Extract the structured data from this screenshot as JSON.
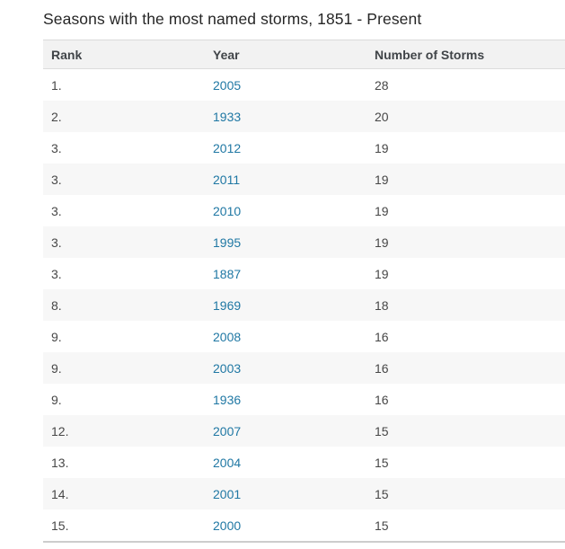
{
  "title": "Seasons with the most named storms, 1851 - Present",
  "table": {
    "headers": [
      "Rank",
      "Year",
      "Number of Storms"
    ],
    "rows": [
      {
        "rank": "1.",
        "year": "2005",
        "storms": "28"
      },
      {
        "rank": "2.",
        "year": "1933",
        "storms": "20"
      },
      {
        "rank": "3.",
        "year": "2012",
        "storms": "19"
      },
      {
        "rank": "3.",
        "year": "2011",
        "storms": "19"
      },
      {
        "rank": "3.",
        "year": "2010",
        "storms": "19"
      },
      {
        "rank": "3.",
        "year": "1995",
        "storms": "19"
      },
      {
        "rank": "3.",
        "year": "1887",
        "storms": "19"
      },
      {
        "rank": "8.",
        "year": "1969",
        "storms": "18"
      },
      {
        "rank": "9.",
        "year": "2008",
        "storms": "16"
      },
      {
        "rank": "9.",
        "year": "2003",
        "storms": "16"
      },
      {
        "rank": "9.",
        "year": "1936",
        "storms": "16"
      },
      {
        "rank": "12.",
        "year": "2007",
        "storms": "15"
      },
      {
        "rank": "13.",
        "year": "2004",
        "storms": "15"
      },
      {
        "rank": "14.",
        "year": "2001",
        "storms": "15"
      },
      {
        "rank": "15.",
        "year": "2000",
        "storms": "15"
      }
    ]
  },
  "chart_data": {
    "type": "table",
    "title": "Seasons with the most named storms, 1851 - Present",
    "columns": [
      "Rank",
      "Year",
      "Number of Storms"
    ],
    "rows": [
      [
        "1.",
        "2005",
        28
      ],
      [
        "2.",
        "1933",
        20
      ],
      [
        "3.",
        "2012",
        19
      ],
      [
        "3.",
        "2011",
        19
      ],
      [
        "3.",
        "2010",
        19
      ],
      [
        "3.",
        "1995",
        19
      ],
      [
        "3.",
        "1887",
        19
      ],
      [
        "8.",
        "1969",
        18
      ],
      [
        "9.",
        "2008",
        16
      ],
      [
        "9.",
        "2003",
        16
      ],
      [
        "9.",
        "1936",
        16
      ],
      [
        "12.",
        "2007",
        15
      ],
      [
        "13.",
        "2004",
        15
      ],
      [
        "14.",
        "2001",
        15
      ],
      [
        "15.",
        "2000",
        15
      ]
    ],
    "layout_hints": {
      "zebra_striping": true,
      "year_values_are_links": true
    }
  },
  "colors": {
    "link": "#2078a4",
    "header_bg": "#f2f2f2",
    "header_text": "#404448",
    "stripe_bg": "#f7f7f7",
    "cell_text": "#474747",
    "title_text": "#262626",
    "header_border": "#dcdcdc",
    "table_bottom_border": "#cdcdcd"
  }
}
